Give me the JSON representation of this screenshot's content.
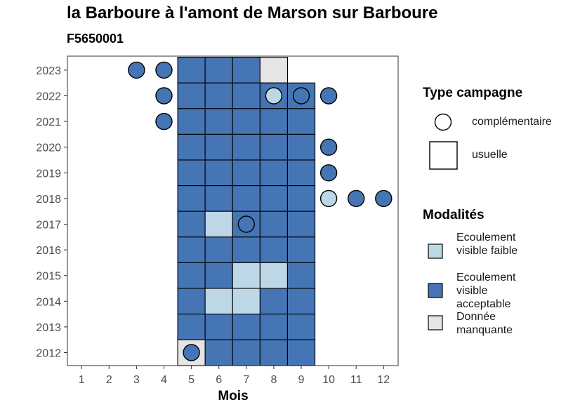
{
  "title": "la Barboure à l'amont de Marson sur Barboure",
  "subtitle": "F5650001",
  "colors": {
    "faible": "#BDD7E7",
    "acceptable": "#4575B4",
    "manquante": "#E5E5E5",
    "border": "#000000"
  },
  "chart_data": {
    "type": "heatmap",
    "xlabel": "Mois",
    "ylabel": "",
    "x_categories": [
      1,
      2,
      3,
      4,
      5,
      6,
      7,
      8,
      9,
      10,
      11,
      12
    ],
    "y_categories": [
      2012,
      2013,
      2014,
      2015,
      2016,
      2017,
      2018,
      2019,
      2020,
      2021,
      2022,
      2023
    ],
    "usuelle": [
      {
        "year": 2023,
        "month": 5,
        "value": "Ecoulement visible acceptable"
      },
      {
        "year": 2023,
        "month": 6,
        "value": "Ecoulement visible acceptable"
      },
      {
        "year": 2023,
        "month": 7,
        "value": "Ecoulement visible acceptable"
      },
      {
        "year": 2023,
        "month": 8,
        "value": "Donnée manquante"
      },
      {
        "year": 2022,
        "month": 5,
        "value": "Ecoulement visible acceptable"
      },
      {
        "year": 2022,
        "month": 6,
        "value": "Ecoulement visible acceptable"
      },
      {
        "year": 2022,
        "month": 7,
        "value": "Ecoulement visible acceptable"
      },
      {
        "year": 2022,
        "month": 8,
        "value": "Ecoulement visible acceptable"
      },
      {
        "year": 2022,
        "month": 9,
        "value": "Ecoulement visible acceptable"
      },
      {
        "year": 2021,
        "month": 5,
        "value": "Ecoulement visible acceptable"
      },
      {
        "year": 2021,
        "month": 6,
        "value": "Ecoulement visible acceptable"
      },
      {
        "year": 2021,
        "month": 7,
        "value": "Ecoulement visible acceptable"
      },
      {
        "year": 2021,
        "month": 8,
        "value": "Ecoulement visible acceptable"
      },
      {
        "year": 2021,
        "month": 9,
        "value": "Ecoulement visible acceptable"
      },
      {
        "year": 2020,
        "month": 5,
        "value": "Ecoulement visible acceptable"
      },
      {
        "year": 2020,
        "month": 6,
        "value": "Ecoulement visible acceptable"
      },
      {
        "year": 2020,
        "month": 7,
        "value": "Ecoulement visible acceptable"
      },
      {
        "year": 2020,
        "month": 8,
        "value": "Ecoulement visible acceptable"
      },
      {
        "year": 2020,
        "month": 9,
        "value": "Ecoulement visible acceptable"
      },
      {
        "year": 2019,
        "month": 5,
        "value": "Ecoulement visible acceptable"
      },
      {
        "year": 2019,
        "month": 6,
        "value": "Ecoulement visible acceptable"
      },
      {
        "year": 2019,
        "month": 7,
        "value": "Ecoulement visible acceptable"
      },
      {
        "year": 2019,
        "month": 8,
        "value": "Ecoulement visible acceptable"
      },
      {
        "year": 2019,
        "month": 9,
        "value": "Ecoulement visible acceptable"
      },
      {
        "year": 2018,
        "month": 5,
        "value": "Ecoulement visible acceptable"
      },
      {
        "year": 2018,
        "month": 6,
        "value": "Ecoulement visible acceptable"
      },
      {
        "year": 2018,
        "month": 7,
        "value": "Ecoulement visible acceptable"
      },
      {
        "year": 2018,
        "month": 8,
        "value": "Ecoulement visible acceptable"
      },
      {
        "year": 2018,
        "month": 9,
        "value": "Ecoulement visible acceptable"
      },
      {
        "year": 2017,
        "month": 5,
        "value": "Ecoulement visible acceptable"
      },
      {
        "year": 2017,
        "month": 6,
        "value": "Ecoulement visible faible"
      },
      {
        "year": 2017,
        "month": 7,
        "value": "Ecoulement visible acceptable"
      },
      {
        "year": 2017,
        "month": 8,
        "value": "Ecoulement visible acceptable"
      },
      {
        "year": 2017,
        "month": 9,
        "value": "Ecoulement visible acceptable"
      },
      {
        "year": 2016,
        "month": 5,
        "value": "Ecoulement visible acceptable"
      },
      {
        "year": 2016,
        "month": 6,
        "value": "Ecoulement visible acceptable"
      },
      {
        "year": 2016,
        "month": 7,
        "value": "Ecoulement visible acceptable"
      },
      {
        "year": 2016,
        "month": 8,
        "value": "Ecoulement visible acceptable"
      },
      {
        "year": 2016,
        "month": 9,
        "value": "Ecoulement visible acceptable"
      },
      {
        "year": 2015,
        "month": 5,
        "value": "Ecoulement visible acceptable"
      },
      {
        "year": 2015,
        "month": 6,
        "value": "Ecoulement visible acceptable"
      },
      {
        "year": 2015,
        "month": 7,
        "value": "Ecoulement visible faible"
      },
      {
        "year": 2015,
        "month": 8,
        "value": "Ecoulement visible faible"
      },
      {
        "year": 2015,
        "month": 9,
        "value": "Ecoulement visible acceptable"
      },
      {
        "year": 2014,
        "month": 5,
        "value": "Ecoulement visible acceptable"
      },
      {
        "year": 2014,
        "month": 6,
        "value": "Ecoulement visible faible"
      },
      {
        "year": 2014,
        "month": 7,
        "value": "Ecoulement visible faible"
      },
      {
        "year": 2014,
        "month": 8,
        "value": "Ecoulement visible acceptable"
      },
      {
        "year": 2014,
        "month": 9,
        "value": "Ecoulement visible acceptable"
      },
      {
        "year": 2013,
        "month": 5,
        "value": "Ecoulement visible acceptable"
      },
      {
        "year": 2013,
        "month": 6,
        "value": "Ecoulement visible acceptable"
      },
      {
        "year": 2013,
        "month": 7,
        "value": "Ecoulement visible acceptable"
      },
      {
        "year": 2013,
        "month": 8,
        "value": "Ecoulement visible acceptable"
      },
      {
        "year": 2013,
        "month": 9,
        "value": "Ecoulement visible acceptable"
      },
      {
        "year": 2012,
        "month": 5,
        "value": "Donnée manquante"
      },
      {
        "year": 2012,
        "month": 6,
        "value": "Ecoulement visible acceptable"
      },
      {
        "year": 2012,
        "month": 7,
        "value": "Ecoulement visible acceptable"
      },
      {
        "year": 2012,
        "month": 8,
        "value": "Ecoulement visible acceptable"
      },
      {
        "year": 2012,
        "month": 9,
        "value": "Ecoulement visible acceptable"
      }
    ],
    "complementaire": [
      {
        "year": 2023,
        "month": 3,
        "value": "Ecoulement visible acceptable"
      },
      {
        "year": 2023,
        "month": 4,
        "value": "Ecoulement visible acceptable"
      },
      {
        "year": 2022,
        "month": 4,
        "value": "Ecoulement visible acceptable"
      },
      {
        "year": 2022,
        "month": 8,
        "value": "Ecoulement visible faible"
      },
      {
        "year": 2022,
        "month": 9,
        "value": "Ecoulement visible acceptable"
      },
      {
        "year": 2022,
        "month": 10,
        "value": "Ecoulement visible acceptable"
      },
      {
        "year": 2021,
        "month": 4,
        "value": "Ecoulement visible acceptable"
      },
      {
        "year": 2020,
        "month": 10,
        "value": "Ecoulement visible acceptable"
      },
      {
        "year": 2019,
        "month": 10,
        "value": "Ecoulement visible acceptable"
      },
      {
        "year": 2018,
        "month": 10,
        "value": "Ecoulement visible faible"
      },
      {
        "year": 2018,
        "month": 11,
        "value": "Ecoulement visible acceptable"
      },
      {
        "year": 2018,
        "month": 12,
        "value": "Ecoulement visible acceptable"
      },
      {
        "year": 2017,
        "month": 7,
        "value": "Ecoulement visible acceptable"
      },
      {
        "year": 2012,
        "month": 5,
        "value": "Ecoulement visible acceptable"
      }
    ],
    "grid": false,
    "legend_position": "right"
  },
  "legend": {
    "type_title": "Type campagne",
    "type_items": [
      "complémentaire",
      "usuelle"
    ],
    "modalites_title": "Modalités",
    "modalites_items": [
      "Ecoulement visible faible",
      "Ecoulement visible acceptable",
      "Donnée manquante"
    ]
  }
}
